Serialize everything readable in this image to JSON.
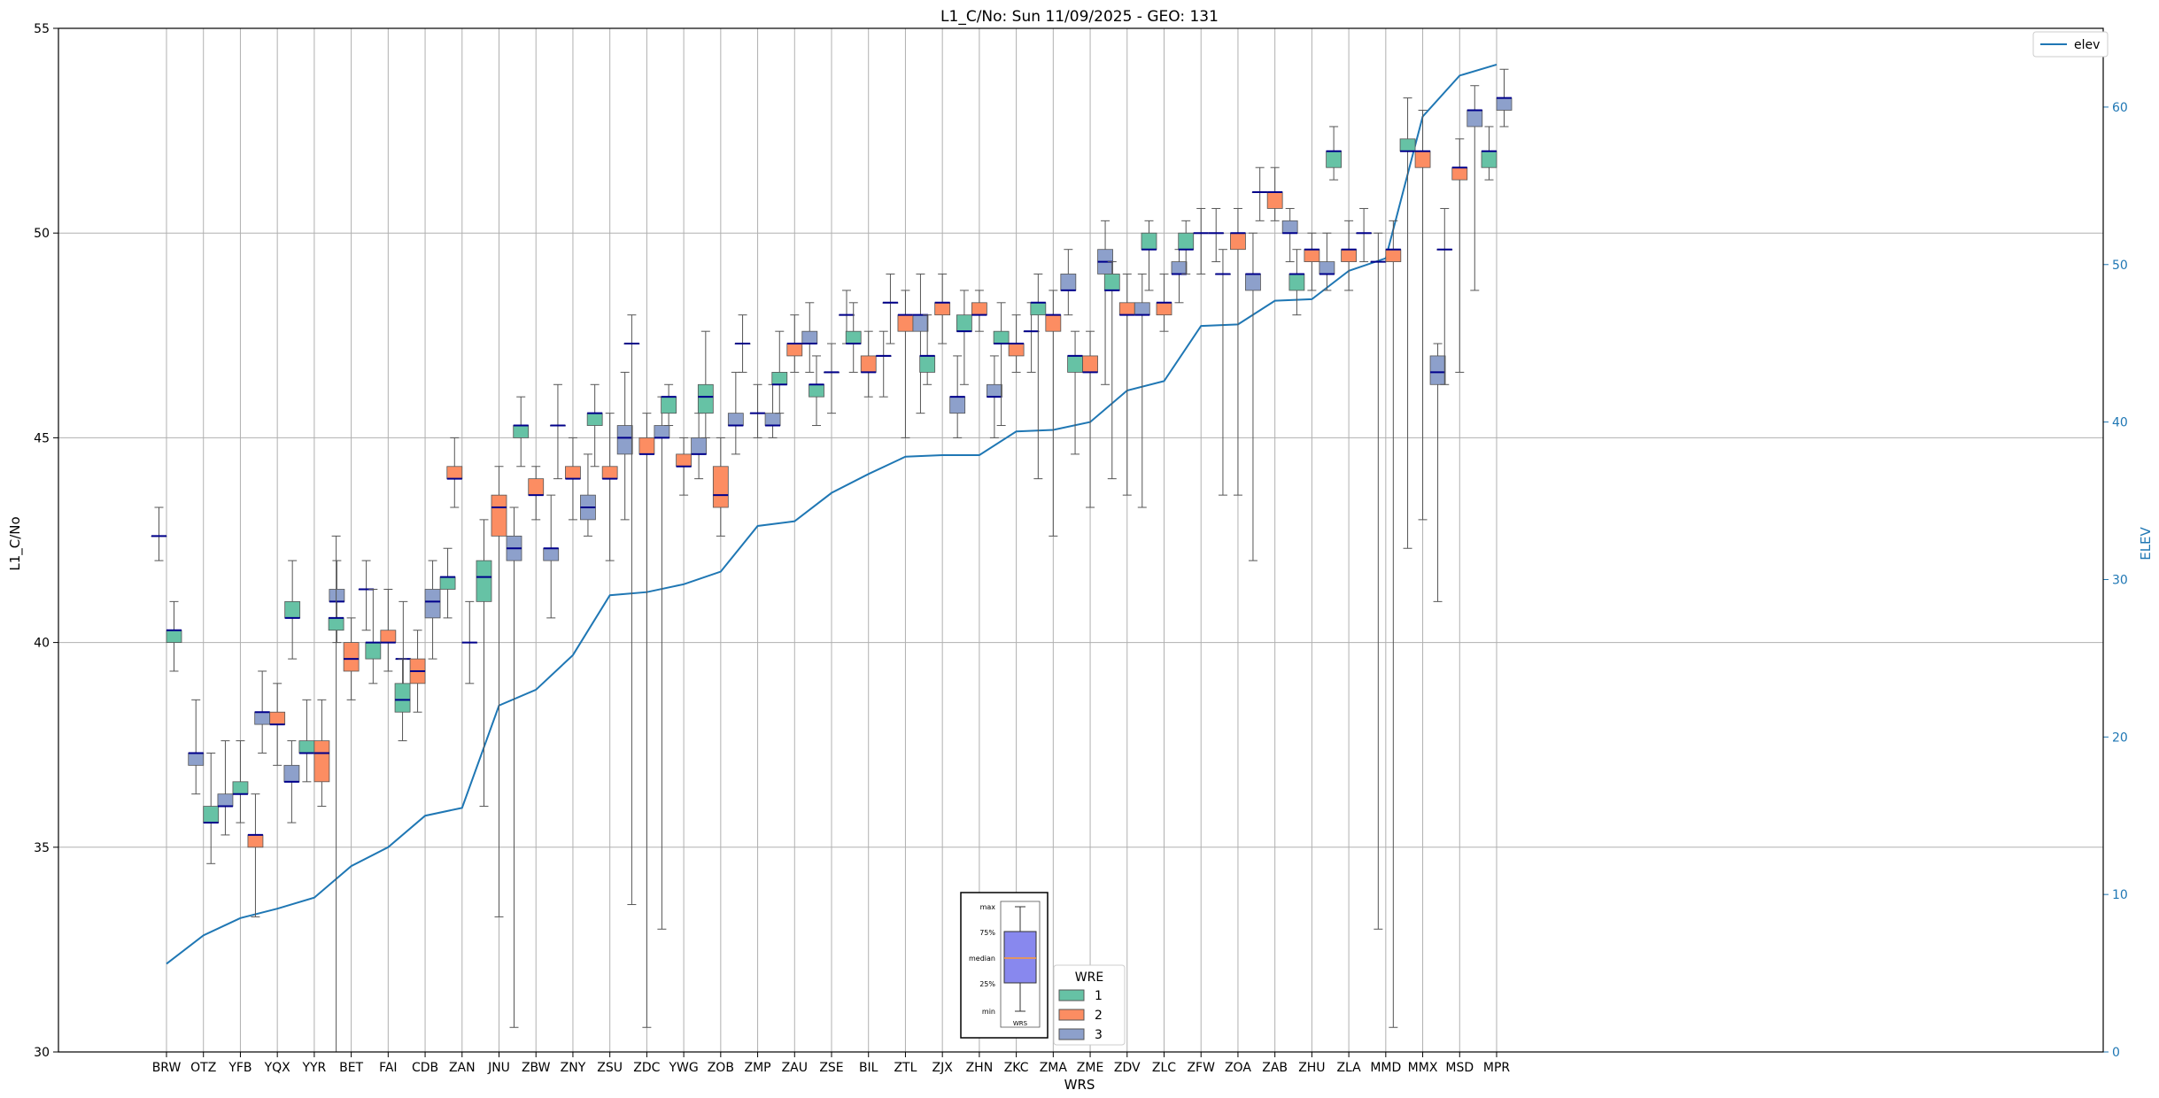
{
  "chart_data": {
    "type": "box",
    "title": "L1_C/No: Sun 11/09/2025 - GEO: 131",
    "xlabel": "WRS",
    "ylabel": "L1_C/No",
    "y2label": "ELEV",
    "ylim": [
      30,
      55
    ],
    "y2lim": [
      0,
      65
    ],
    "yticks": [
      30,
      35,
      40,
      45,
      50,
      55
    ],
    "y2ticks": [
      0,
      10,
      20,
      30,
      40,
      50,
      60
    ],
    "grid": true,
    "legend_line_label": "elev",
    "legend_wre_title": "WRE",
    "colors": {
      "1": "#66c2a5",
      "2": "#fc8d62",
      "3": "#8da0cb",
      "median": "#00008b",
      "elev": "#1f77b4",
      "whisker": "#555555"
    },
    "key_labels": {
      "max": "max",
      "q3": "75%",
      "median": "median",
      "q1": "25%",
      "min": "min",
      "footer": "WRS"
    },
    "stations": [
      "BRW",
      "OTZ",
      "YFB",
      "YQX",
      "YYR",
      "BET",
      "FAI",
      "CDB",
      "ZAN",
      "JNU",
      "ZBW",
      "ZNY",
      "ZSU",
      "ZDC",
      "YWG",
      "ZOB",
      "ZMP",
      "ZAU",
      "ZSE",
      "BIL",
      "ZTL",
      "ZJX",
      "ZHN",
      "ZKC",
      "ZMA",
      "ZME",
      "ZDV",
      "ZLC",
      "ZFW",
      "ZOA",
      "ZAB",
      "ZHU",
      "ZLA",
      "MMD",
      "MMX",
      "MSD",
      "MPR"
    ],
    "elev": [
      5.6,
      7.4,
      8.5,
      9.1,
      9.8,
      11.8,
      13.0,
      15.0,
      15.5,
      22.0,
      23.0,
      25.2,
      29.0,
      29.2,
      29.7,
      30.5,
      33.4,
      33.7,
      35.5,
      36.7,
      37.8,
      37.9,
      37.9,
      39.4,
      39.5,
      40.0,
      42.0,
      42.6,
      46.1,
      46.2,
      47.7,
      47.8,
      49.6,
      50.4,
      59.4,
      62.0,
      62.7
    ],
    "boxes": [
      {
        "station": "BRW",
        "wre": 3,
        "min": 42,
        "q1": 42.6,
        "med": 42.6,
        "q3": 42.6,
        "max": 43.3
      },
      {
        "station": "BRW",
        "wre": 1,
        "min": 39.3,
        "q1": 40.0,
        "med": 40.3,
        "q3": 40.3,
        "max": 41.0
      },
      {
        "station": "OTZ",
        "wre": 3,
        "min": 36.3,
        "q1": 37.0,
        "med": 37.3,
        "q3": 37.3,
        "max": 38.6
      },
      {
        "station": "OTZ",
        "wre": 1,
        "min": 34.6,
        "q1": 35.6,
        "med": 35.6,
        "q3": 36.0,
        "max": 37.3
      },
      {
        "station": "YFB",
        "wre": 3,
        "min": 35.3,
        "q1": 36.0,
        "med": 36.0,
        "q3": 36.3,
        "max": 37.6
      },
      {
        "station": "YFB",
        "wre": 1,
        "min": 35.6,
        "q1": 36.3,
        "med": 36.3,
        "q3": 36.6,
        "max": 37.6
      },
      {
        "station": "YFB",
        "wre": 2,
        "min": 33.3,
        "q1": 35.0,
        "med": 35.3,
        "q3": 35.3,
        "max": 36.3
      },
      {
        "station": "YQX",
        "wre": 3,
        "min": 37.3,
        "q1": 38.0,
        "med": 38.3,
        "q3": 38.3,
        "max": 39.3
      },
      {
        "station": "YQX",
        "wre": 2,
        "min": 37.0,
        "q1": 38.0,
        "med": 38.0,
        "q3": 38.3,
        "max": 39.0
      },
      {
        "station": "YQX",
        "wre": 1,
        "min": 39.6,
        "q1": 40.6,
        "med": 40.6,
        "q3": 41.0,
        "max": 42.0
      },
      {
        "station": "YYR",
        "wre": 3,
        "min": 35.6,
        "q1": 36.6,
        "med": 36.6,
        "q3": 37.0,
        "max": 37.6
      },
      {
        "station": "YYR",
        "wre": 1,
        "min": 36.6,
        "q1": 37.3,
        "med": 37.3,
        "q3": 37.6,
        "max": 38.6
      },
      {
        "station": "YYR",
        "wre": 2,
        "min": 36.0,
        "q1": 36.6,
        "med": 37.3,
        "q3": 37.6,
        "max": 38.6
      },
      {
        "station": "YYR",
        "wre": 3,
        "min": 40.0,
        "q1": 41.0,
        "med": 41.0,
        "q3": 41.3,
        "max": 42.0
      },
      {
        "station": "BET",
        "wre": 1,
        "min": 30.0,
        "q1": 40.3,
        "med": 40.6,
        "q3": 40.6,
        "max": 42.6
      },
      {
        "station": "BET",
        "wre": 2,
        "min": 38.6,
        "q1": 39.3,
        "med": 39.6,
        "q3": 40.0,
        "max": 40.6
      },
      {
        "station": "BET",
        "wre": 3,
        "min": 40.3,
        "q1": 41.3,
        "med": 41.3,
        "q3": 41.3,
        "max": 42.0
      },
      {
        "station": "FAI",
        "wre": 1,
        "min": 39.0,
        "q1": 39.6,
        "med": 40.0,
        "q3": 40.0,
        "max": 41.3
      },
      {
        "station": "FAI",
        "wre": 2,
        "min": 39.3,
        "q1": 40.0,
        "med": 40.0,
        "q3": 40.3,
        "max": 41.3
      },
      {
        "station": "FAI",
        "wre": 3,
        "min": 38.6,
        "q1": 39.6,
        "med": 39.6,
        "q3": 39.6,
        "max": 41.0
      },
      {
        "station": "CDB",
        "wre": 1,
        "min": 37.6,
        "q1": 38.3,
        "med": 38.6,
        "q3": 39.0,
        "max": 39.6
      },
      {
        "station": "CDB",
        "wre": 2,
        "min": 38.3,
        "q1": 39.0,
        "med": 39.3,
        "q3": 39.6,
        "max": 40.3
      },
      {
        "station": "CDB",
        "wre": 3,
        "min": 39.6,
        "q1": 40.6,
        "med": 41.0,
        "q3": 41.3,
        "max": 42.0
      },
      {
        "station": "CDB",
        "wre": 1,
        "min": 40.6,
        "q1": 41.3,
        "med": 41.6,
        "q3": 41.6,
        "max": 42.3
      },
      {
        "station": "ZAN",
        "wre": 2,
        "min": 43.3,
        "q1": 44.0,
        "med": 44.0,
        "q3": 44.3,
        "max": 45.0
      },
      {
        "station": "ZAN",
        "wre": 3,
        "min": 39.0,
        "q1": 40.0,
        "med": 40.0,
        "q3": 40.0,
        "max": 41.0
      },
      {
        "station": "JNU",
        "wre": 1,
        "min": 36.0,
        "q1": 41.0,
        "med": 41.6,
        "q3": 42.0,
        "max": 43.0
      },
      {
        "station": "JNU",
        "wre": 2,
        "min": 33.3,
        "q1": 42.6,
        "med": 43.3,
        "q3": 43.6,
        "max": 44.3
      },
      {
        "station": "JNU",
        "wre": 3,
        "min": 30.6,
        "q1": 42.0,
        "med": 42.3,
        "q3": 42.6,
        "max": 43.3
      },
      {
        "station": "ZBW",
        "wre": 1,
        "min": 44.3,
        "q1": 45.0,
        "med": 45.3,
        "q3": 45.3,
        "max": 46.0
      },
      {
        "station": "ZBW",
        "wre": 2,
        "min": 43.0,
        "q1": 43.6,
        "med": 43.6,
        "q3": 44.0,
        "max": 44.3
      },
      {
        "station": "ZBW",
        "wre": 3,
        "min": 40.6,
        "q1": 42.0,
        "med": 42.3,
        "q3": 42.3,
        "max": 43.6
      },
      {
        "station": "ZNY",
        "wre": 3,
        "min": 44.0,
        "q1": 45.3,
        "med": 45.3,
        "q3": 45.3,
        "max": 46.3
      },
      {
        "station": "ZNY",
        "wre": 2,
        "min": 43.0,
        "q1": 44.0,
        "med": 44.0,
        "q3": 44.3,
        "max": 45.0
      },
      {
        "station": "ZNY",
        "wre": 3,
        "min": 42.6,
        "q1": 43.0,
        "med": 43.3,
        "q3": 43.6,
        "max": 44.6
      },
      {
        "station": "ZSU",
        "wre": 1,
        "min": 44.3,
        "q1": 45.3,
        "med": 45.6,
        "q3": 45.6,
        "max": 46.3
      },
      {
        "station": "ZSU",
        "wre": 2,
        "min": 42.0,
        "q1": 44.0,
        "med": 44.0,
        "q3": 44.3,
        "max": 45.6
      },
      {
        "station": "ZSU",
        "wre": 3,
        "min": 43.0,
        "q1": 44.6,
        "med": 45.0,
        "q3": 45.3,
        "max": 46.6
      },
      {
        "station": "ZDC",
        "wre": 3,
        "min": 33.6,
        "q1": 47.3,
        "med": 47.3,
        "q3": 47.3,
        "max": 48.0
      },
      {
        "station": "ZDC",
        "wre": 2,
        "min": 30.6,
        "q1": 44.6,
        "med": 44.6,
        "q3": 45.0,
        "max": 45.6
      },
      {
        "station": "ZDC",
        "wre": 3,
        "min": 33.0,
        "q1": 45.0,
        "med": 45.0,
        "q3": 45.3,
        "max": 46.0
      },
      {
        "station": "YWG",
        "wre": 1,
        "min": 45.3,
        "q1": 45.6,
        "med": 46.0,
        "q3": 46.0,
        "max": 46.3
      },
      {
        "station": "YWG",
        "wre": 2,
        "min": 43.6,
        "q1": 44.3,
        "med": 44.3,
        "q3": 44.6,
        "max": 45.0
      },
      {
        "station": "YWG",
        "wre": 3,
        "min": 44.0,
        "q1": 44.6,
        "med": 44.6,
        "q3": 45.0,
        "max": 45.6
      },
      {
        "station": "ZOB",
        "wre": 1,
        "min": 45.0,
        "q1": 45.6,
        "med": 46.0,
        "q3": 46.3,
        "max": 47.6
      },
      {
        "station": "ZOB",
        "wre": 2,
        "min": 42.6,
        "q1": 43.3,
        "med": 43.6,
        "q3": 44.3,
        "max": 45.0
      },
      {
        "station": "ZOB",
        "wre": 3,
        "min": 44.6,
        "q1": 45.3,
        "med": 45.3,
        "q3": 45.6,
        "max": 46.6
      },
      {
        "station": "ZMP",
        "wre": 3,
        "min": 46.6,
        "q1": 47.3,
        "med": 47.3,
        "q3": 47.3,
        "max": 48.0
      },
      {
        "station": "ZMP",
        "wre": 1,
        "min": 45.0,
        "q1": 45.6,
        "med": 45.6,
        "q3": 45.6,
        "max": 46.3
      },
      {
        "station": "ZMP",
        "wre": 3,
        "min": 45.0,
        "q1": 45.3,
        "med": 45.3,
        "q3": 45.6,
        "max": 46.3
      },
      {
        "station": "ZAU",
        "wre": 1,
        "min": 45.6,
        "q1": 46.3,
        "med": 46.3,
        "q3": 46.6,
        "max": 47.6
      },
      {
        "station": "ZAU",
        "wre": 2,
        "min": 46.6,
        "q1": 47.0,
        "med": 47.3,
        "q3": 47.3,
        "max": 48.0
      },
      {
        "station": "ZAU",
        "wre": 3,
        "min": 46.6,
        "q1": 47.3,
        "med": 47.3,
        "q3": 47.6,
        "max": 48.3
      },
      {
        "station": "ZSE",
        "wre": 1,
        "min": 45.3,
        "q1": 46.0,
        "med": 46.3,
        "q3": 46.3,
        "max": 47.0
      },
      {
        "station": "ZSE",
        "wre": 3,
        "min": 45.6,
        "q1": 46.6,
        "med": 46.6,
        "q3": 46.6,
        "max": 47.3
      },
      {
        "station": "ZSE",
        "wre": 3,
        "min": 47.3,
        "q1": 48.0,
        "med": 48.0,
        "q3": 48.0,
        "max": 48.6
      },
      {
        "station": "BIL",
        "wre": 1,
        "min": 46.6,
        "q1": 47.3,
        "med": 47.3,
        "q3": 47.6,
        "max": 48.3
      },
      {
        "station": "BIL",
        "wre": 2,
        "min": 46.0,
        "q1": 46.6,
        "med": 46.6,
        "q3": 47.0,
        "max": 47.6
      },
      {
        "station": "BIL",
        "wre": 3,
        "min": 46.0,
        "q1": 47.0,
        "med": 47.0,
        "q3": 47.0,
        "max": 47.6
      },
      {
        "station": "ZTL",
        "wre": 3,
        "min": 47.3,
        "q1": 48.3,
        "med": 48.3,
        "q3": 48.3,
        "max": 49.0
      },
      {
        "station": "ZTL",
        "wre": 2,
        "min": 45.0,
        "q1": 47.6,
        "med": 48.0,
        "q3": 48.0,
        "max": 48.6
      },
      {
        "station": "ZTL",
        "wre": 3,
        "min": 45.6,
        "q1": 47.6,
        "med": 48.0,
        "q3": 48.0,
        "max": 49.0
      },
      {
        "station": "ZJX",
        "wre": 1,
        "min": 46.3,
        "q1": 46.6,
        "med": 47.0,
        "q3": 47.0,
        "max": 48.0
      },
      {
        "station": "ZJX",
        "wre": 2,
        "min": 47.3,
        "q1": 48.0,
        "med": 48.3,
        "q3": 48.3,
        "max": 49.0
      },
      {
        "station": "ZJX",
        "wre": 3,
        "min": 45.0,
        "q1": 45.6,
        "med": 46.0,
        "q3": 46.0,
        "max": 47.0
      },
      {
        "station": "ZHN",
        "wre": 1,
        "min": 46.3,
        "q1": 47.6,
        "med": 47.6,
        "q3": 48.0,
        "max": 48.6
      },
      {
        "station": "ZHN",
        "wre": 2,
        "min": 47.6,
        "q1": 48.0,
        "med": 48.0,
        "q3": 48.3,
        "max": 48.6
      },
      {
        "station": "ZHN",
        "wre": 3,
        "min": 45.0,
        "q1": 46.0,
        "med": 46.0,
        "q3": 46.3,
        "max": 47.0
      },
      {
        "station": "ZKC",
        "wre": 1,
        "min": 45.3,
        "q1": 47.3,
        "med": 47.3,
        "q3": 47.6,
        "max": 48.3
      },
      {
        "station": "ZKC",
        "wre": 2,
        "min": 46.6,
        "q1": 47.0,
        "med": 47.3,
        "q3": 47.3,
        "max": 48.0
      },
      {
        "station": "ZKC",
        "wre": 3,
        "min": 46.6,
        "q1": 47.6,
        "med": 47.6,
        "q3": 47.6,
        "max": 48.3
      },
      {
        "station": "ZMA",
        "wre": 1,
        "min": 44.0,
        "q1": 48.0,
        "med": 48.3,
        "q3": 48.3,
        "max": 49.0
      },
      {
        "station": "ZMA",
        "wre": 2,
        "min": 42.6,
        "q1": 47.6,
        "med": 48.0,
        "q3": 48.0,
        "max": 48.6
      },
      {
        "station": "ZMA",
        "wre": 3,
        "min": 48.0,
        "q1": 48.6,
        "med": 48.6,
        "q3": 49.0,
        "max": 49.6
      },
      {
        "station": "ZME",
        "wre": 1,
        "min": 44.6,
        "q1": 46.6,
        "med": 47.0,
        "q3": 47.0,
        "max": 47.6
      },
      {
        "station": "ZME",
        "wre": 2,
        "min": 43.3,
        "q1": 46.6,
        "med": 46.6,
        "q3": 47.0,
        "max": 47.6
      },
      {
        "station": "ZME",
        "wre": 3,
        "min": 46.3,
        "q1": 49.0,
        "med": 49.3,
        "q3": 49.6,
        "max": 50.3
      },
      {
        "station": "ZDV",
        "wre": 1,
        "min": 44.0,
        "q1": 48.6,
        "med": 48.6,
        "q3": 49.0,
        "max": 49.3
      },
      {
        "station": "ZDV",
        "wre": 2,
        "min": 43.6,
        "q1": 48.0,
        "med": 48.0,
        "q3": 48.3,
        "max": 49.0
      },
      {
        "station": "ZDV",
        "wre": 3,
        "min": 43.3,
        "q1": 48.0,
        "med": 48.0,
        "q3": 48.3,
        "max": 49.0
      },
      {
        "station": "ZLC",
        "wre": 1,
        "min": 48.6,
        "q1": 49.6,
        "med": 49.6,
        "q3": 50.0,
        "max": 50.3
      },
      {
        "station": "ZLC",
        "wre": 2,
        "min": 47.6,
        "q1": 48.0,
        "med": 48.3,
        "q3": 48.3,
        "max": 49.0
      },
      {
        "station": "ZLC",
        "wre": 3,
        "min": 48.3,
        "q1": 49.0,
        "med": 49.0,
        "q3": 49.3,
        "max": 49.6
      },
      {
        "station": "ZFW",
        "wre": 1,
        "min": 49.0,
        "q1": 49.6,
        "med": 49.6,
        "q3": 50.0,
        "max": 50.3
      },
      {
        "station": "ZFW",
        "wre": 3,
        "min": 49.0,
        "q1": 50.0,
        "med": 50.0,
        "q3": 50.0,
        "max": 50.6
      },
      {
        "station": "ZFW",
        "wre": 3,
        "min": 49.3,
        "q1": 50.0,
        "med": 50.0,
        "q3": 50.0,
        "max": 50.6
      },
      {
        "station": "ZOA",
        "wre": 3,
        "min": 43.6,
        "q1": 49.0,
        "med": 49.0,
        "q3": 49.0,
        "max": 49.6
      },
      {
        "station": "ZOA",
        "wre": 2,
        "min": 43.6,
        "q1": 49.6,
        "med": 50.0,
        "q3": 50.0,
        "max": 50.6
      },
      {
        "station": "ZOA",
        "wre": 3,
        "min": 42.0,
        "q1": 48.6,
        "med": 49.0,
        "q3": 49.0,
        "max": 50.0
      },
      {
        "station": "ZAB",
        "wre": 3,
        "min": 50.3,
        "q1": 51.0,
        "med": 51.0,
        "q3": 51.0,
        "max": 51.6
      },
      {
        "station": "ZAB",
        "wre": 2,
        "min": 50.3,
        "q1": 50.6,
        "med": 51.0,
        "q3": 51.0,
        "max": 51.6
      },
      {
        "station": "ZAB",
        "wre": 3,
        "min": 49.3,
        "q1": 50.0,
        "med": 50.0,
        "q3": 50.3,
        "max": 50.6
      },
      {
        "station": "ZHU",
        "wre": 1,
        "min": 48.0,
        "q1": 48.6,
        "med": 49.0,
        "q3": 49.0,
        "max": 49.6
      },
      {
        "station": "ZHU",
        "wre": 2,
        "min": 48.6,
        "q1": 49.3,
        "med": 49.6,
        "q3": 49.6,
        "max": 50.0
      },
      {
        "station": "ZHU",
        "wre": 3,
        "min": 48.6,
        "q1": 49.0,
        "med": 49.0,
        "q3": 49.3,
        "max": 50.0
      },
      {
        "station": "ZLA",
        "wre": 1,
        "min": 51.3,
        "q1": 51.6,
        "med": 52.0,
        "q3": 52.0,
        "max": 52.6
      },
      {
        "station": "ZLA",
        "wre": 2,
        "min": 48.6,
        "q1": 49.3,
        "med": 49.6,
        "q3": 49.6,
        "max": 50.3
      },
      {
        "station": "ZLA",
        "wre": 3,
        "min": 49.3,
        "q1": 50.0,
        "med": 50.0,
        "q3": 50.0,
        "max": 50.6
      },
      {
        "station": "MMD",
        "wre": 3,
        "min": 33.0,
        "q1": 49.3,
        "med": 49.3,
        "q3": 49.3,
        "max": 50.0
      },
      {
        "station": "MMD",
        "wre": 2,
        "min": 30.6,
        "q1": 49.3,
        "med": 49.6,
        "q3": 49.6,
        "max": 50.3
      },
      {
        "station": "MMX",
        "wre": 1,
        "min": 42.3,
        "q1": 52.0,
        "med": 52.0,
        "q3": 52.3,
        "max": 53.3
      },
      {
        "station": "MMX",
        "wre": 2,
        "min": 43.0,
        "q1": 51.6,
        "med": 52.0,
        "q3": 52.0,
        "max": 53.0
      },
      {
        "station": "MMX",
        "wre": 3,
        "min": 41.0,
        "q1": 46.3,
        "med": 46.6,
        "q3": 47.0,
        "max": 47.3
      },
      {
        "station": "MSD",
        "wre": 3,
        "min": 46.3,
        "q1": 49.6,
        "med": 49.6,
        "q3": 49.6,
        "max": 50.6
      },
      {
        "station": "MSD",
        "wre": 2,
        "min": 46.6,
        "q1": 51.3,
        "med": 51.6,
        "q3": 51.6,
        "max": 52.3
      },
      {
        "station": "MSD",
        "wre": 3,
        "min": 48.6,
        "q1": 52.6,
        "med": 53.0,
        "q3": 53.0,
        "max": 53.6
      },
      {
        "station": "MPR",
        "wre": 1,
        "min": 51.3,
        "q1": 51.6,
        "med": 52.0,
        "q3": 52.0,
        "max": 52.6
      },
      {
        "station": "MPR",
        "wre": 3,
        "min": 52.6,
        "q1": 53.0,
        "med": 53.3,
        "q3": 53.3,
        "max": 54.0
      }
    ]
  }
}
